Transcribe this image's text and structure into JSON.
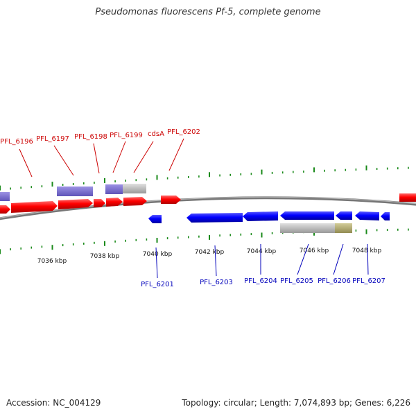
{
  "title": "Pseudomonas fluorescens Pf-5, complete genome",
  "footer": {
    "accession": "Accession: NC_004129",
    "summary": "Topology: circular; Length: 7,074,893 bp; Genes: 6,226"
  },
  "colors": {
    "forward_gene": "#ff0000",
    "reverse_gene": "#0000ff",
    "forward_label": "#cc0000",
    "reverse_label": "#0000bb",
    "cds_box": "#7b6fd0",
    "rna_box": "#c0c0c0",
    "olive_box": "#b5ae75",
    "tick": "#1a8a1a",
    "backbone": "#888888"
  },
  "scale_labels": [
    "7036 kbp",
    "7038 kbp",
    "7040 kbp",
    "7042 kbp",
    "7044 kbp",
    "7046 kbp",
    "7048 kbp"
  ],
  "forward_labels": [
    "PFL_6196",
    "PFL_6197",
    "PFL_6198",
    "PFL_6199",
    "cdsA",
    "PFL_6202"
  ],
  "reverse_labels": [
    "PFL_6201",
    "PFL_6203",
    "PFL_6204",
    "PFL_6205",
    "PFL_6206",
    "PFL_6207"
  ]
}
